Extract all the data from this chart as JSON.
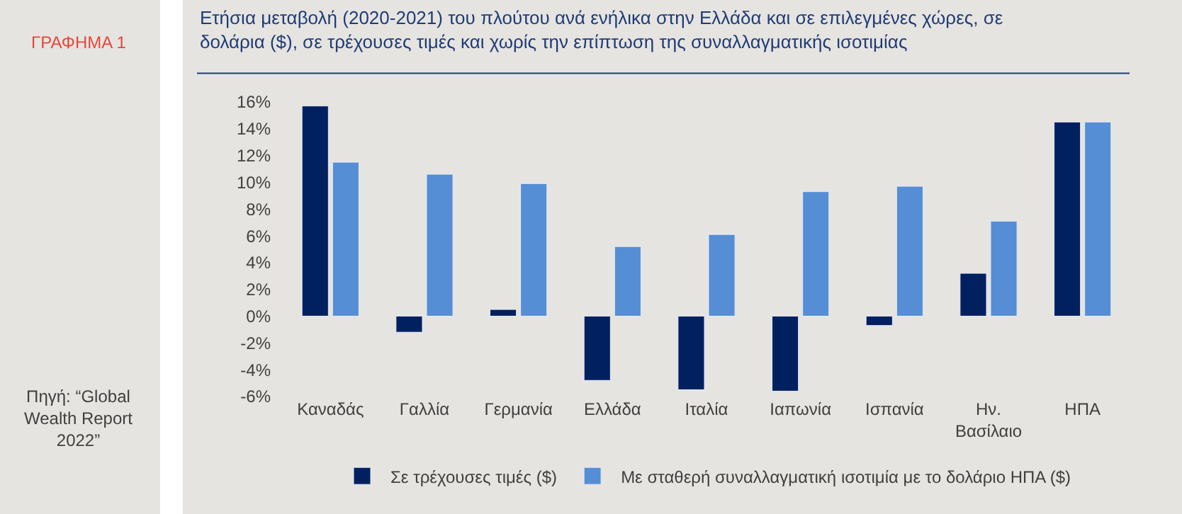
{
  "chart_data": {
    "type": "bar",
    "title": "Ετήσια μεταβολή (2020-2021) του πλούτου ανά ενήλικα στην Ελλάδα και σε επιλεγμένες χώρες, σε δολάρια ($), σε τρέχουσες τιμές και χωρίς την επίπτωση της συναλλαγματικής ισοτιμίας",
    "annotations": [
      "ΓΡΑΦΗΜΑ 1",
      "Πηγή: “Global Wealth Report 2022”"
    ],
    "categories": [
      "Καναδάς",
      "Γαλλία",
      "Γερμανία",
      "Ελλάδα",
      "Ιταλία",
      "Ιαπωνία",
      "Ισπανία",
      "Ην. Βασίλαιο",
      "ΗΠΑ"
    ],
    "series": [
      {
        "name": "Σε τρέχουσες τιμές ($)",
        "color": "#002060",
        "values": [
          15.7,
          -1.2,
          0.5,
          -4.8,
          -5.5,
          -5.6,
          -0.7,
          3.2,
          14.5
        ]
      },
      {
        "name": "Με σταθερή συναλλαγματική ισοτιμία με το δολάριο ΗΠΑ ($)",
        "color": "#558ed5",
        "values": [
          11.5,
          10.6,
          9.9,
          5.2,
          6.1,
          9.3,
          9.7,
          7.1,
          14.5
        ]
      }
    ],
    "ylim": [
      -6,
      16
    ],
    "yticks": [
      {
        "value": -6,
        "label": "-6%"
      },
      {
        "value": -4,
        "label": "-4%"
      },
      {
        "value": -2,
        "label": "-2%"
      },
      {
        "value": 0,
        "label": "0%"
      },
      {
        "value": 2,
        "label": "2%"
      },
      {
        "value": 4,
        "label": "4%"
      },
      {
        "value": 6,
        "label": "6%"
      },
      {
        "value": 8,
        "label": "8%"
      },
      {
        "value": 10,
        "label": "10%"
      },
      {
        "value": 12,
        "label": "12%"
      },
      {
        "value": 14,
        "label": "14%"
      },
      {
        "value": 16,
        "label": "16%"
      }
    ],
    "grid": false,
    "legend": "bottom"
  }
}
